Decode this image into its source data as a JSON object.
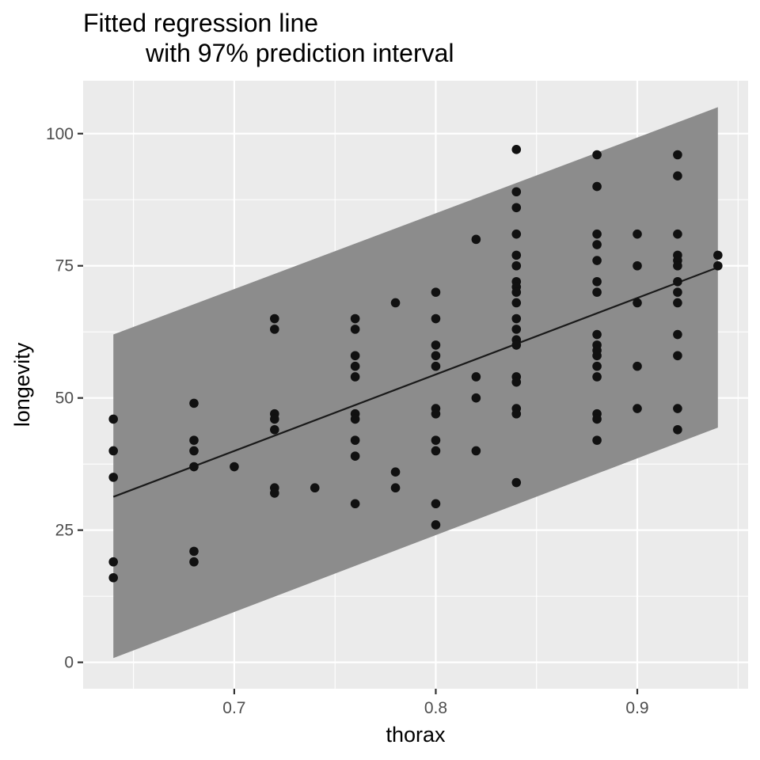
{
  "chart_data": {
    "type": "scatter",
    "title_lines": [
      "Fitted regression line",
      "with 97% prediction interval"
    ],
    "xlabel": "thorax",
    "ylabel": "longevity",
    "xlim": [
      0.625,
      0.955
    ],
    "ylim": [
      -5,
      110
    ],
    "x_ticks": [
      0.7,
      0.8,
      0.9
    ],
    "x_tick_labels": [
      "0.7",
      "0.8",
      "0.9"
    ],
    "y_ticks": [
      0,
      25,
      50,
      75,
      100
    ],
    "y_tick_labels": [
      "0",
      "25",
      "50",
      "75",
      "100"
    ],
    "grid": true,
    "colors": {
      "panel": "#ebebeb",
      "grid": "#ffffff",
      "band": "#8c8c8c",
      "line": "#1a1a1a",
      "point": "#111111",
      "tick": "#333333"
    },
    "fit_line": {
      "x": [
        0.64,
        0.94
      ],
      "y": [
        31.3,
        74.7
      ]
    },
    "prediction_band": {
      "x": [
        0.64,
        0.94
      ],
      "lower": [
        0.8,
        44.4
      ],
      "upper": [
        62.0,
        105.0
      ]
    },
    "points": [
      [
        0.64,
        46
      ],
      [
        0.64,
        40
      ],
      [
        0.64,
        35
      ],
      [
        0.64,
        19
      ],
      [
        0.64,
        16
      ],
      [
        0.68,
        49
      ],
      [
        0.68,
        42
      ],
      [
        0.68,
        40
      ],
      [
        0.68,
        37
      ],
      [
        0.68,
        21
      ],
      [
        0.68,
        19
      ],
      [
        0.7,
        37
      ],
      [
        0.72,
        65
      ],
      [
        0.72,
        63
      ],
      [
        0.72,
        47
      ],
      [
        0.72,
        46
      ],
      [
        0.72,
        44
      ],
      [
        0.72,
        33
      ],
      [
        0.72,
        32
      ],
      [
        0.74,
        33
      ],
      [
        0.76,
        65
      ],
      [
        0.76,
        63
      ],
      [
        0.76,
        58
      ],
      [
        0.76,
        56
      ],
      [
        0.76,
        54
      ],
      [
        0.76,
        47
      ],
      [
        0.76,
        46
      ],
      [
        0.76,
        42
      ],
      [
        0.76,
        39
      ],
      [
        0.76,
        30
      ],
      [
        0.78,
        68
      ],
      [
        0.78,
        36
      ],
      [
        0.78,
        33
      ],
      [
        0.8,
        70
      ],
      [
        0.8,
        65
      ],
      [
        0.8,
        60
      ],
      [
        0.8,
        58
      ],
      [
        0.8,
        56
      ],
      [
        0.8,
        48
      ],
      [
        0.8,
        47
      ],
      [
        0.8,
        42
      ],
      [
        0.8,
        40
      ],
      [
        0.8,
        30
      ],
      [
        0.8,
        26
      ],
      [
        0.82,
        80
      ],
      [
        0.82,
        54
      ],
      [
        0.82,
        50
      ],
      [
        0.82,
        40
      ],
      [
        0.84,
        97
      ],
      [
        0.84,
        89
      ],
      [
        0.84,
        86
      ],
      [
        0.84,
        81
      ],
      [
        0.84,
        77
      ],
      [
        0.84,
        75
      ],
      [
        0.84,
        72
      ],
      [
        0.84,
        71
      ],
      [
        0.84,
        70
      ],
      [
        0.84,
        68
      ],
      [
        0.84,
        65
      ],
      [
        0.84,
        63
      ],
      [
        0.84,
        61
      ],
      [
        0.84,
        60
      ],
      [
        0.84,
        54
      ],
      [
        0.84,
        53
      ],
      [
        0.84,
        48
      ],
      [
        0.84,
        47
      ],
      [
        0.84,
        34
      ],
      [
        0.88,
        96
      ],
      [
        0.88,
        90
      ],
      [
        0.88,
        81
      ],
      [
        0.88,
        79
      ],
      [
        0.88,
        76
      ],
      [
        0.88,
        72
      ],
      [
        0.88,
        70
      ],
      [
        0.88,
        62
      ],
      [
        0.88,
        60
      ],
      [
        0.88,
        59
      ],
      [
        0.88,
        58
      ],
      [
        0.88,
        56
      ],
      [
        0.88,
        54
      ],
      [
        0.88,
        47
      ],
      [
        0.88,
        46
      ],
      [
        0.88,
        42
      ],
      [
        0.9,
        81
      ],
      [
        0.9,
        75
      ],
      [
        0.9,
        68
      ],
      [
        0.9,
        56
      ],
      [
        0.9,
        48
      ],
      [
        0.92,
        96
      ],
      [
        0.92,
        92
      ],
      [
        0.92,
        81
      ],
      [
        0.92,
        77
      ],
      [
        0.92,
        76
      ],
      [
        0.92,
        75
      ],
      [
        0.92,
        72
      ],
      [
        0.92,
        70
      ],
      [
        0.92,
        68
      ],
      [
        0.92,
        62
      ],
      [
        0.92,
        58
      ],
      [
        0.92,
        48
      ],
      [
        0.92,
        44
      ],
      [
        0.94,
        77
      ],
      [
        0.94,
        75
      ]
    ]
  }
}
